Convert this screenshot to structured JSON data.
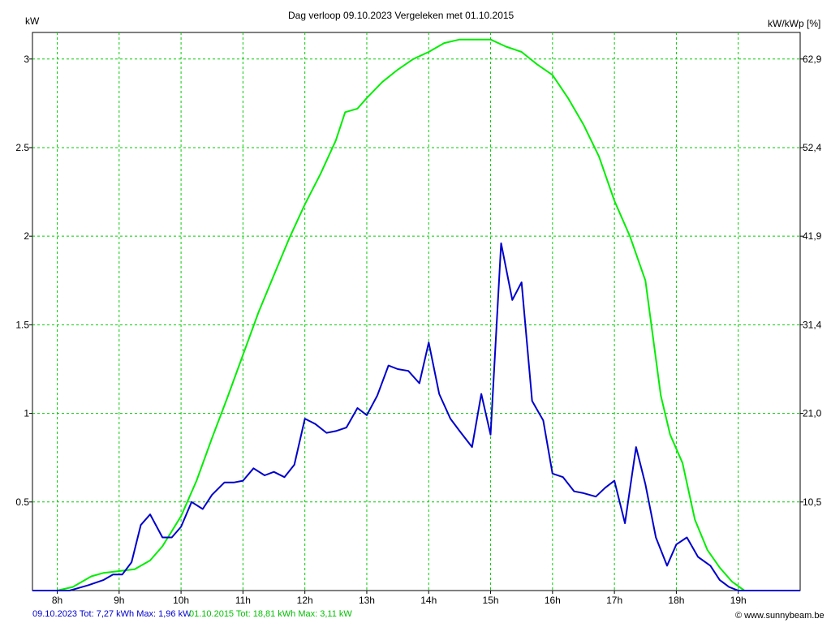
{
  "chart_data": {
    "type": "line",
    "title": "Dag  verloop 09.10.2023   Vergeleken met 01.10.2015",
    "left_axis_label": "kW",
    "right_axis_label": "kW/kWp [%]",
    "x_ticks": [
      "8h",
      "9h",
      "10h",
      "11h",
      "12h",
      "13h",
      "14h",
      "15h",
      "16h",
      "17h",
      "18h",
      "19h"
    ],
    "x_range": [
      7.6,
      20.0
    ],
    "y_range": [
      0,
      3.15
    ],
    "y_ticks": [
      0.5,
      1,
      1.5,
      2,
      2.5,
      3
    ],
    "y_tick_labels": [
      "0.5",
      "1",
      "1.5",
      "2",
      "2.5",
      "3"
    ],
    "y2_tick_labels": [
      "10,5",
      "21,0",
      "31,4",
      "41,9",
      "52,4",
      "62,9"
    ],
    "grid": true,
    "grid_color": "#00cc00",
    "series": [
      {
        "name": "09.10.2023",
        "color": "#0000cc",
        "points": [
          [
            7.6,
            0
          ],
          [
            8.2,
            0
          ],
          [
            8.3,
            0.01
          ],
          [
            8.5,
            0.03
          ],
          [
            8.75,
            0.06
          ],
          [
            8.9,
            0.09
          ],
          [
            9.05,
            0.09
          ],
          [
            9.2,
            0.16
          ],
          [
            9.35,
            0.37
          ],
          [
            9.5,
            0.43
          ],
          [
            9.7,
            0.3
          ],
          [
            9.85,
            0.3
          ],
          [
            10.0,
            0.36
          ],
          [
            10.17,
            0.5
          ],
          [
            10.35,
            0.46
          ],
          [
            10.5,
            0.54
          ],
          [
            10.7,
            0.61
          ],
          [
            10.85,
            0.61
          ],
          [
            11.0,
            0.62
          ],
          [
            11.17,
            0.69
          ],
          [
            11.35,
            0.65
          ],
          [
            11.5,
            0.67
          ],
          [
            11.67,
            0.64
          ],
          [
            11.83,
            0.71
          ],
          [
            12.0,
            0.97
          ],
          [
            12.17,
            0.94
          ],
          [
            12.35,
            0.89
          ],
          [
            12.5,
            0.9
          ],
          [
            12.67,
            0.92
          ],
          [
            12.85,
            1.03
          ],
          [
            13.0,
            0.99
          ],
          [
            13.17,
            1.1
          ],
          [
            13.35,
            1.27
          ],
          [
            13.5,
            1.25
          ],
          [
            13.67,
            1.24
          ],
          [
            13.85,
            1.17
          ],
          [
            14.0,
            1.4
          ],
          [
            14.17,
            1.11
          ],
          [
            14.35,
            0.97
          ],
          [
            14.5,
            0.9
          ],
          [
            14.7,
            0.81
          ],
          [
            14.85,
            1.11
          ],
          [
            15.0,
            0.88
          ],
          [
            15.17,
            1.96
          ],
          [
            15.35,
            1.64
          ],
          [
            15.5,
            1.74
          ],
          [
            15.67,
            1.07
          ],
          [
            15.85,
            0.96
          ],
          [
            16.0,
            0.66
          ],
          [
            16.17,
            0.64
          ],
          [
            16.35,
            0.56
          ],
          [
            16.5,
            0.55
          ],
          [
            16.7,
            0.53
          ],
          [
            16.85,
            0.58
          ],
          [
            17.0,
            0.62
          ],
          [
            17.17,
            0.38
          ],
          [
            17.35,
            0.81
          ],
          [
            17.5,
            0.6
          ],
          [
            17.67,
            0.3
          ],
          [
            17.85,
            0.14
          ],
          [
            18.0,
            0.26
          ],
          [
            18.17,
            0.3
          ],
          [
            18.35,
            0.19
          ],
          [
            18.55,
            0.14
          ],
          [
            18.7,
            0.06
          ],
          [
            18.85,
            0.02
          ],
          [
            19.0,
            0
          ],
          [
            20.0,
            0
          ]
        ]
      },
      {
        "name": "01.10.2015",
        "color": "#00ee00",
        "points": [
          [
            7.6,
            0
          ],
          [
            8.0,
            0
          ],
          [
            8.25,
            0.02
          ],
          [
            8.4,
            0.05
          ],
          [
            8.55,
            0.08
          ],
          [
            8.75,
            0.1
          ],
          [
            9.0,
            0.11
          ],
          [
            9.25,
            0.12
          ],
          [
            9.5,
            0.17
          ],
          [
            9.7,
            0.25
          ],
          [
            10.0,
            0.42
          ],
          [
            10.25,
            0.62
          ],
          [
            10.5,
            0.86
          ],
          [
            10.75,
            1.09
          ],
          [
            11.0,
            1.33
          ],
          [
            11.25,
            1.57
          ],
          [
            11.5,
            1.78
          ],
          [
            11.75,
            1.99
          ],
          [
            12.0,
            2.18
          ],
          [
            12.25,
            2.35
          ],
          [
            12.5,
            2.54
          ],
          [
            12.65,
            2.7
          ],
          [
            12.85,
            2.72
          ],
          [
            13.0,
            2.78
          ],
          [
            13.25,
            2.87
          ],
          [
            13.5,
            2.94
          ],
          [
            13.75,
            3.0
          ],
          [
            14.0,
            3.04
          ],
          [
            14.25,
            3.09
          ],
          [
            14.5,
            3.11
          ],
          [
            15.0,
            3.11
          ],
          [
            15.25,
            3.07
          ],
          [
            15.5,
            3.04
          ],
          [
            15.75,
            2.97
          ],
          [
            16.0,
            2.91
          ],
          [
            16.25,
            2.78
          ],
          [
            16.5,
            2.63
          ],
          [
            16.75,
            2.45
          ],
          [
            17.0,
            2.2
          ],
          [
            17.25,
            2.0
          ],
          [
            17.5,
            1.75
          ],
          [
            17.75,
            1.1
          ],
          [
            17.9,
            0.88
          ],
          [
            18.1,
            0.72
          ],
          [
            18.3,
            0.4
          ],
          [
            18.5,
            0.23
          ],
          [
            18.7,
            0.13
          ],
          [
            18.9,
            0.05
          ],
          [
            19.1,
            0
          ],
          [
            20.0,
            0
          ]
        ]
      }
    ]
  },
  "footer": {
    "blue_text": "09.10.2023 Tot: 7,27 kWh Max: 1,96 kW",
    "green_text": "01.10.2015 Tot: 18,81 kWh Max: 3,11 kW",
    "watermark": "© www.sunnybeam.be"
  }
}
